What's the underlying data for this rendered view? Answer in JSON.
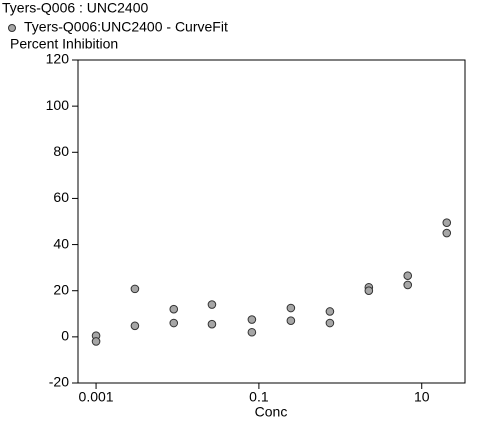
{
  "chart_data": {
    "type": "scatter",
    "title": "Tyers-Q006 : UNC2400",
    "ylabel": "Percent Inhibition",
    "xlabel": "Conc",
    "xscale": "log",
    "grid": false,
    "x": [
      0.001,
      0.001,
      0.003,
      0.003,
      0.009,
      0.009,
      0.0265,
      0.0265,
      0.082,
      0.082,
      0.247,
      0.247,
      0.745,
      0.745,
      2.24,
      2.24,
      6.73,
      6.73,
      20.3,
      20.3
    ],
    "series": [
      {
        "name": "Tyers-Q006:UNC2400 - CurveFit",
        "color": "#a6a6a6",
        "values": [
          0.5,
          -2,
          20.8,
          4.8,
          12,
          6,
          14,
          5.5,
          7.5,
          2,
          12.5,
          7,
          11,
          6,
          21.5,
          20,
          26.5,
          22.5,
          49.5,
          45
        ]
      }
    ],
    "xlim": [
      0.0006,
      34
    ],
    "ylim": [
      -20,
      120
    ],
    "xticks": [
      0.001,
      0.1,
      10
    ],
    "yticks": [
      -20,
      0,
      20,
      40,
      60,
      80,
      100,
      120
    ]
  }
}
